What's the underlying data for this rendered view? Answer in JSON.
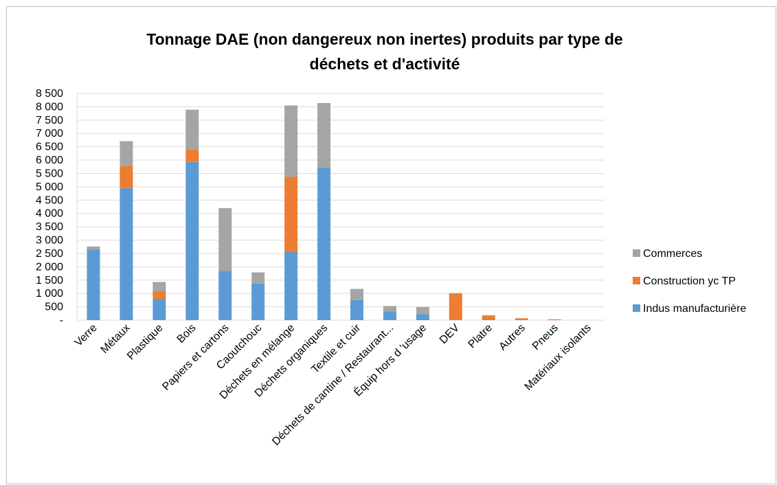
{
  "chart_data": {
    "type": "bar",
    "stacked": true,
    "title": [
      "Tonnage DAE (non dangereux non inertes) produits par type de",
      "déchets et d'activité"
    ],
    "xlabel": "",
    "ylabel": "",
    "ylim": [
      0,
      8500
    ],
    "yticks": [
      0,
      500,
      1000,
      1500,
      2000,
      2500,
      3000,
      3500,
      4000,
      4500,
      5000,
      5500,
      6000,
      6500,
      7000,
      7500,
      8000,
      8500
    ],
    "ytick_labels": [
      "-",
      "500",
      "1 000",
      "1 500",
      "2 000",
      "2 500",
      "3 000",
      "3 500",
      "4 000",
      "4 500",
      "5 000",
      "5 500",
      "6 000",
      "6 500",
      "7 000",
      "7 500",
      "8 000",
      "8 500"
    ],
    "grid": "horizontal",
    "legend_position": "right",
    "categories": [
      "Verre",
      "Métaux",
      "Plastique",
      "Bois",
      "Papiers et cartons",
      "Caoutchouc",
      "Déchets en mélange",
      "Déchets organiques",
      "Textile et cuir",
      "Déchets de cantine / Restaurant...",
      "Équip hors d 'usage",
      "DEV",
      "Platre",
      "Autres",
      "Pneus",
      "Matériaux isolants"
    ],
    "series": [
      {
        "name": "Indus manufacturière",
        "color": "#5b9bd5",
        "values": [
          2650,
          4950,
          800,
          5930,
          1850,
          1370,
          2550,
          5720,
          750,
          320,
          220,
          0,
          0,
          0,
          0,
          0
        ]
      },
      {
        "name": "Construction yc TP",
        "color": "#ed7d31",
        "values": [
          0,
          830,
          280,
          470,
          0,
          0,
          2830,
          0,
          0,
          0,
          0,
          1010,
          180,
          70,
          30,
          0
        ]
      },
      {
        "name": "Commerces",
        "color": "#a5a5a5",
        "values": [
          110,
          930,
          350,
          1490,
          2350,
          420,
          2670,
          2420,
          420,
          210,
          270,
          0,
          0,
          0,
          0,
          0
        ]
      }
    ]
  }
}
